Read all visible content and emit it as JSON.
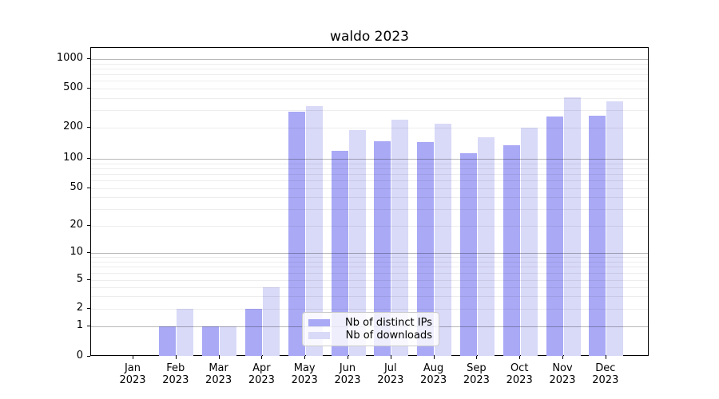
{
  "figure": {
    "background": "#ffffff"
  },
  "chart_data": {
    "type": "bar",
    "title": "waldo 2023",
    "categories": [
      "Jan",
      "Feb",
      "Mar",
      "Apr",
      "May",
      "Jun",
      "Jul",
      "Aug",
      "Sep",
      "Oct",
      "Nov",
      "Dec"
    ],
    "category_year": "2023",
    "series": [
      {
        "name": "Nb of distinct IPs",
        "color": "#a9a9f6",
        "values": [
          0,
          1,
          1,
          2,
          290,
          120,
          148,
          145,
          113,
          135,
          260,
          265
        ]
      },
      {
        "name": "Nb of downloads",
        "color": "#d9d9f8",
        "values": [
          0,
          2,
          1,
          4,
          330,
          190,
          240,
          220,
          162,
          200,
          405,
          370
        ]
      }
    ],
    "y_axis": {
      "scale": "symlog",
      "ticks": [
        0,
        1,
        2,
        5,
        10,
        20,
        50,
        100,
        200,
        500,
        1000
      ],
      "major_gridline_values": [
        1,
        10,
        100,
        1000
      ],
      "minor_gridline_decades": [
        1,
        10,
        100
      ],
      "ylim": [
        0,
        1300
      ]
    },
    "x_axis": {
      "label_format": "month over year"
    },
    "legend": {
      "position": "lower center",
      "entries": [
        "Nb of distinct IPs",
        "Nb of downloads"
      ]
    },
    "grid": true
  }
}
